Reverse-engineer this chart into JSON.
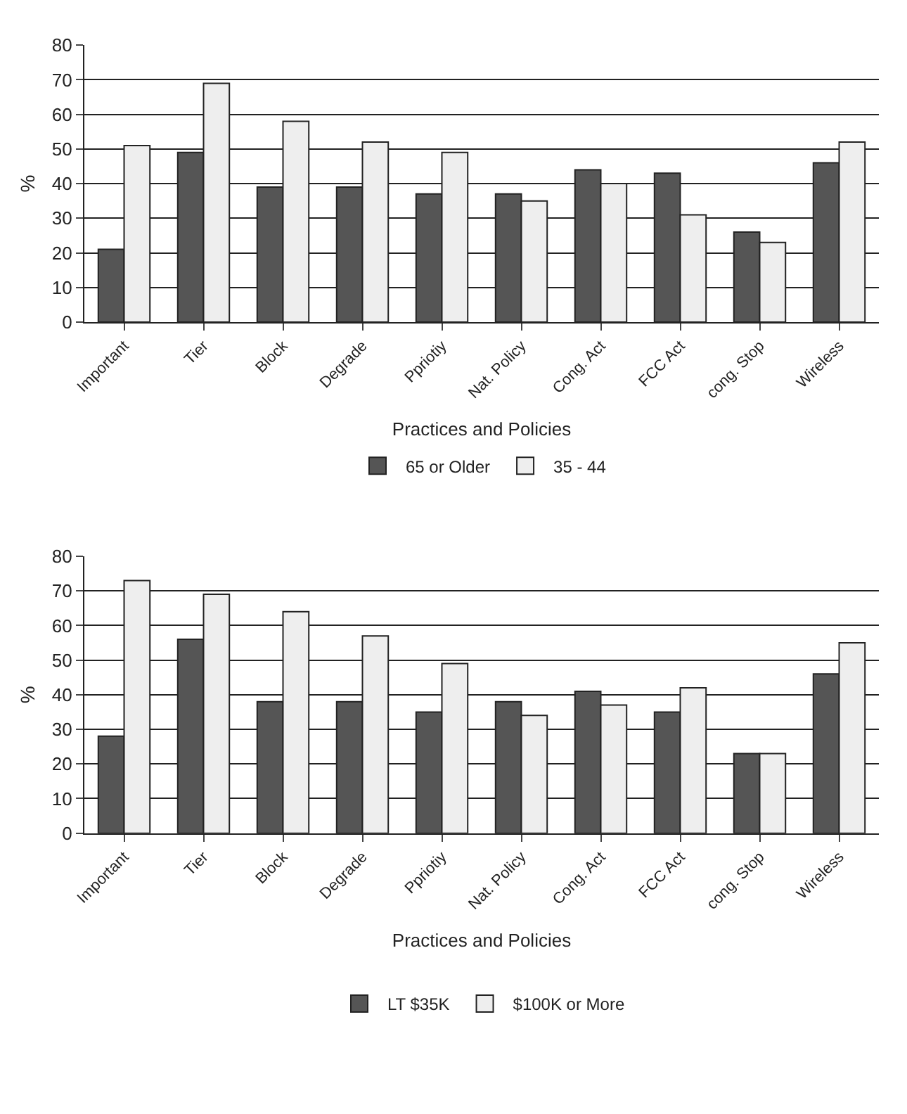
{
  "chart_data": [
    {
      "type": "bar",
      "categories": [
        "Important",
        "Tier",
        "Block",
        "Degrade",
        "Ppriotiy",
        "Nat. Policy",
        "Cong. Act",
        "FCC Act",
        "cong. Stop",
        "Wireless"
      ],
      "xlabel": "Practices and Policies",
      "ylabel": "%",
      "ylim": [
        0,
        80
      ],
      "yticks": [
        0,
        10,
        20,
        30,
        40,
        50,
        60,
        70,
        80
      ],
      "grid": "y",
      "legend": "bottom",
      "series": [
        {
          "name": "65 or Older",
          "color": "#555555",
          "values": [
            21,
            49,
            39,
            39,
            37,
            37,
            44,
            43,
            26,
            46
          ]
        },
        {
          "name": "35 - 44",
          "color": "#eeeeee",
          "values": [
            51,
            69,
            58,
            52,
            49,
            35,
            40,
            31,
            23,
            52
          ]
        }
      ]
    },
    {
      "type": "bar",
      "categories": [
        "Important",
        "Tier",
        "Block",
        "Degrade",
        "Ppriotiy",
        "Nat. Policy",
        "Cong. Act",
        "FCC Act",
        "cong. Stop",
        "Wireless"
      ],
      "xlabel": "Practices and Policies",
      "ylabel": "%",
      "ylim": [
        0,
        80
      ],
      "yticks": [
        0,
        10,
        20,
        30,
        40,
        50,
        60,
        70,
        80
      ],
      "grid": "y",
      "legend": "bottom",
      "series": [
        {
          "name": "LT $35K",
          "color": "#555555",
          "values": [
            28,
            56,
            38,
            38,
            35,
            38,
            41,
            35,
            23,
            46
          ]
        },
        {
          "name": "$100K or More",
          "color": "#eeeeee",
          "values": [
            73,
            69,
            64,
            57,
            49,
            34,
            37,
            42,
            23,
            55
          ]
        }
      ]
    }
  ]
}
